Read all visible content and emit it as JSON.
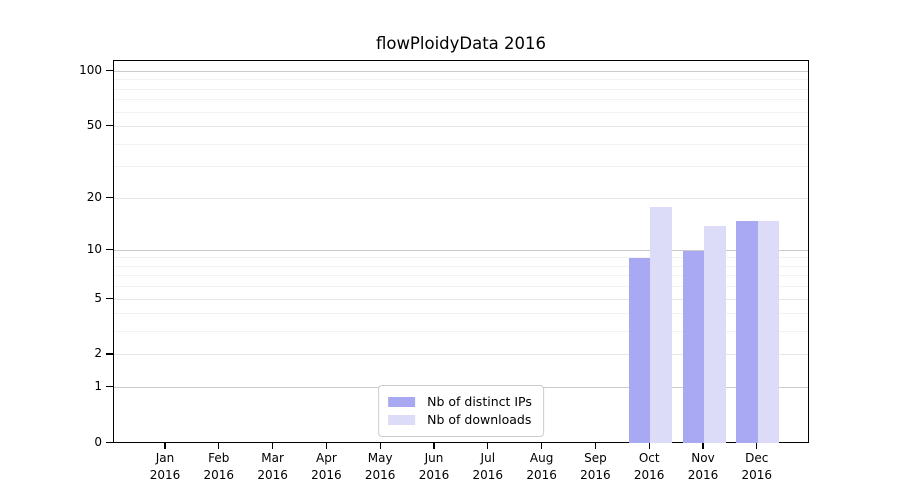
{
  "chart_data": {
    "type": "bar",
    "title": "flowPloidyData 2016",
    "categories": [
      "Jan",
      "Feb",
      "Mar",
      "Apr",
      "May",
      "Jun",
      "Jul",
      "Aug",
      "Sep",
      "Oct",
      "Nov",
      "Dec"
    ],
    "category_year": "2016",
    "series": [
      {
        "name": "Nb of distinct IPs",
        "color": "#a8a8f3",
        "values": [
          null,
          null,
          null,
          null,
          null,
          null,
          null,
          null,
          null,
          9,
          10,
          15
        ]
      },
      {
        "name": "Nb of downloads",
        "color": "#dcdcf9",
        "values": [
          null,
          null,
          null,
          null,
          null,
          null,
          null,
          null,
          null,
          18,
          14,
          15
        ]
      }
    ],
    "y_axis": {
      "scale": "log1p",
      "ticks": [
        100,
        50,
        20,
        10,
        5,
        2,
        1,
        0
      ],
      "range": [
        0,
        115
      ]
    },
    "x_axis": {
      "tick_label_lines": 2
    },
    "grid": "horizontal",
    "legend_position": "lower center"
  },
  "colors": {
    "background": "#ffffff",
    "axis": "#000000",
    "text": "#000000",
    "grid_major": "#cbcbcb",
    "grid_medium": "#e7e7e7",
    "grid_minor": "#f2f2f2",
    "legend_border": "#cccccc"
  }
}
